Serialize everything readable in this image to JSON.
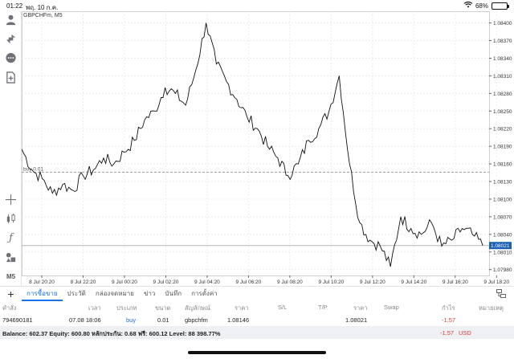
{
  "status_bar": {
    "time": "01:22",
    "date": "พฤ. 10 ก.ค.",
    "battery": "68%"
  },
  "chart": {
    "symbol_label": "GBPCHFm, M5",
    "trade_line_label": "buy 0.01",
    "current_price": "1.08021",
    "price_ticks": [
      "1.08400",
      "1.08370",
      "1.08340",
      "1.08310",
      "1.08280",
      "1.08250",
      "1.08220",
      "1.08190",
      "1.08160",
      "1.08130",
      "1.08100",
      "1.08070",
      "1.08040",
      "1.08010",
      "1.07980"
    ],
    "time_ticks": [
      "8 Jul 20:20",
      "8 Jul 22:20",
      "9 Jul 00:20",
      "9 Jul 02:20",
      "9 Jul 04:20",
      "9 Jul 06:20",
      "9 Jul 08:20",
      "9 Jul 10:20",
      "9 Jul 12:20",
      "9 Jul 14:20",
      "9 Jul 16:20",
      "9 Jul 18:20"
    ]
  },
  "chart_data": {
    "type": "line",
    "title": "GBPCHFm, M5",
    "xlabel": "",
    "ylabel": "",
    "ylim": [
      1.0797,
      1.0842
    ],
    "x": [
      "8 Jul 19:55",
      "8 Jul 20:20",
      "8 Jul 21:00",
      "8 Jul 21:40",
      "8 Jul 22:20",
      "8 Jul 23:00",
      "8 Jul 23:40",
      "9 Jul 00:20",
      "9 Jul 01:00",
      "9 Jul 01:40",
      "9 Jul 02:20",
      "9 Jul 03:00",
      "9 Jul 03:40",
      "9 Jul 04:20",
      "9 Jul 04:50",
      "9 Jul 05:20",
      "9 Jul 05:50",
      "9 Jul 06:20",
      "9 Jul 06:40",
      "9 Jul 07:00",
      "9 Jul 07:30",
      "9 Jul 08:00",
      "9 Jul 08:20",
      "9 Jul 08:50",
      "9 Jul 09:20",
      "9 Jul 09:50",
      "9 Jul 10:20",
      "9 Jul 10:50",
      "9 Jul 11:20",
      "9 Jul 11:50",
      "9 Jul 12:10",
      "9 Jul 12:20",
      "9 Jul 12:40",
      "9 Jul 13:00",
      "9 Jul 13:20",
      "9 Jul 13:50",
      "9 Jul 14:10",
      "9 Jul 14:30",
      "9 Jul 15:00",
      "9 Jul 15:30",
      "9 Jul 15:50",
      "9 Jul 16:20",
      "9 Jul 16:50",
      "9 Jul 17:20",
      "9 Jul 17:50",
      "9 Jul 18:20"
    ],
    "series": [
      {
        "values": [
          1.08185,
          1.0815,
          1.08135,
          1.0811,
          1.08125,
          1.08115,
          1.0814,
          1.0815,
          1.0817,
          1.0816,
          1.0818,
          1.082,
          1.08235,
          1.0825,
          1.0829,
          1.0828,
          1.0826,
          1.0832,
          1.084,
          1.0833,
          1.083,
          1.0827,
          1.0824,
          1.0822,
          1.0819,
          1.0817,
          1.0814,
          1.0816,
          1.082,
          1.0822,
          1.0825,
          1.0831,
          1.0816,
          1.0806,
          1.0803,
          1.0802,
          1.07985,
          1.0807,
          1.0805,
          1.0804,
          1.0806,
          1.0802,
          1.0803,
          1.0805,
          1.0804,
          1.08021
        ]
      }
    ],
    "lines": {
      "trade_entry": 1.08146,
      "current": 1.08021
    },
    "grid": true
  },
  "sidebar": {
    "icons": [
      "user-icon",
      "trade-icon",
      "chat-icon",
      "add-document-icon",
      "crosshair-icon",
      "candles-icon",
      "function-icon",
      "objects-icon",
      "timeframe-icon"
    ],
    "timeframe": "M5"
  },
  "tabs": [
    "การซื้อขาย",
    "ประวัติ",
    "กล่องจดหมาย",
    "ข่าว",
    "บันทึก",
    "การตั้งค่า"
  ],
  "table": {
    "headers": [
      "คำสั่ง",
      "เวลา",
      "ประเภท",
      "ขนาด",
      "สัญลักษณ์",
      "ราคา",
      "S/L",
      "T/P",
      "ราคา",
      "Swap",
      "กำไร",
      "หมายเหตุ"
    ],
    "row": {
      "order": "794690181",
      "time": "07.08 18:06",
      "type": "buy",
      "volume": "0.01",
      "symbol": "gbpchfm",
      "open_price": "1.08146",
      "sl": "",
      "tp": "",
      "price": "1.08021",
      "swap": "",
      "profit": "-1.57",
      "comment": ""
    }
  },
  "balance": {
    "text": "Balance: 602.37 Equity: 600.80 หลักประกัน: 0.68 ฟรี: 600.12 Level: 88 398.77%",
    "profit": "-1.57",
    "currency": "USD"
  },
  "colors": {
    "accent": "#1a73e8",
    "loss": "#e53935",
    "price_badge": "#1a5fb4"
  }
}
